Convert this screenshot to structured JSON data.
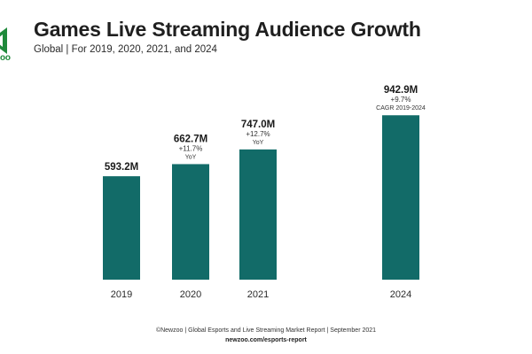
{
  "brand": {
    "logo_text": "oo"
  },
  "header": {
    "title": "Games Live Streaming Audience Growth",
    "subtitle": "Global | For 2019, 2020, 2021, and 2024"
  },
  "footer": {
    "credit": "©Newzoo | Global Esports and Live Streaming Market Report | September 2021",
    "url": "newzoo.com/esports-report"
  },
  "colors": {
    "bar": "#126b68",
    "brand_green": "#1f8a3b"
  },
  "chart_data": {
    "type": "bar",
    "title": "Games Live Streaming Audience Growth",
    "subtitle": "Global | For 2019, 2020, 2021, and 2024",
    "xlabel": "",
    "ylabel": "",
    "grid": false,
    "ylim": [
      0,
      1000
    ],
    "categories": [
      "2019",
      "2020",
      "2021",
      "2024"
    ],
    "values": [
      593.2,
      662.7,
      747.0,
      942.9
    ],
    "value_labels": [
      "593.2M",
      "662.7M",
      "747.0M",
      "942.9M"
    ],
    "annotations": [
      [],
      [
        "+11.7%",
        "YoY"
      ],
      [
        "+12.7%",
        "YoY"
      ],
      [
        "+9.7%",
        "CAGR 2019-2024"
      ]
    ]
  }
}
